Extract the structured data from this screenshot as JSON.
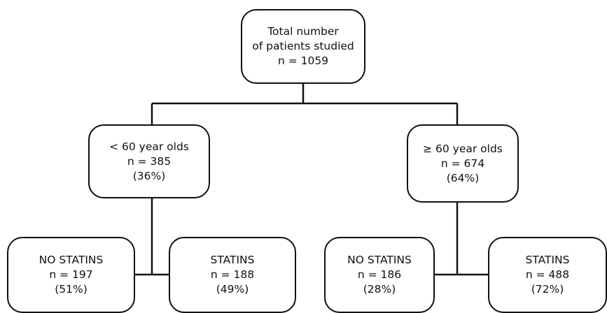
{
  "root": {
    "lines": [
      "Total number",
      "of patients studied",
      "n = 1059"
    ]
  },
  "under60": {
    "lines": [
      "< 60 year olds",
      "n = 385",
      "(36%)"
    ]
  },
  "over60": {
    "lines": [
      "≥ 60 year olds",
      "n = 674",
      "(64%)"
    ]
  },
  "under60_no_statins": {
    "lines": [
      "NO STATINS",
      "n = 197",
      "(51%)"
    ]
  },
  "under60_statins": {
    "lines": [
      "STATINS",
      "n = 188",
      "(49%)"
    ]
  },
  "over60_no_statins": {
    "lines": [
      "NO STATINS",
      "n = 186",
      "(28%)"
    ]
  },
  "over60_statins": {
    "lines": [
      "STATINS",
      "n = 488",
      "(72%)"
    ]
  },
  "colors": {
    "stroke": "#111111",
    "background": "#ffffff"
  }
}
